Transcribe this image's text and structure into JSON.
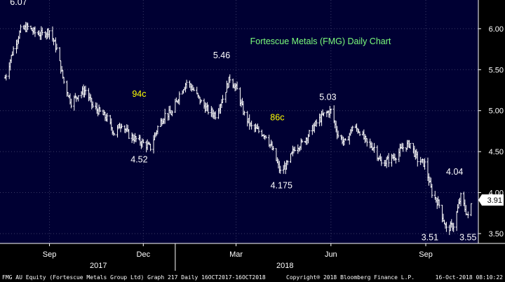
{
  "colors": {
    "plot_bg": "#000033",
    "price": "#FFFFFF",
    "grid": "#3A3A66",
    "title": "#7CFC7C",
    "highlight": "#FFFF00",
    "axis_text": "#FFFFFF",
    "footer_bg": "#000000"
  },
  "chart_data": {
    "type": "ohlc-bar",
    "title": "Fortescue Metals (FMG) Daily Chart",
    "ylim": [
      3.38,
      6.35
    ],
    "y_ticks": [
      {
        "value": 3.5,
        "label": "3.50"
      },
      {
        "value": 4.0,
        "label": "4.00"
      },
      {
        "value": 4.5,
        "label": "4.50"
      },
      {
        "value": 5.0,
        "label": "5.00"
      },
      {
        "value": 5.5,
        "label": "5.50"
      },
      {
        "value": 6.0,
        "label": "6.00"
      }
    ],
    "x_ticks": [
      {
        "date": "2017-09-01",
        "label": "Sep"
      },
      {
        "date": "2017-12-01",
        "label": "Dec"
      },
      {
        "date": "2018-03-01",
        "label": "Mar"
      },
      {
        "date": "2018-06-01",
        "label": "Jun"
      },
      {
        "date": "2018-09-01",
        "label": "Sep"
      }
    ],
    "year_labels": [
      {
        "label": "2017",
        "date": "2017-11-01"
      },
      {
        "label": "2018",
        "date": "2018-05-01"
      }
    ],
    "last_price": {
      "value": 3.91,
      "label": "3.91"
    },
    "series": [
      {
        "points": [
          [
            "2017-07-20",
            5.4
          ],
          [
            "2017-07-28",
            5.75
          ],
          [
            "2017-08-04",
            5.98
          ],
          [
            "2017-08-11",
            6.02
          ],
          [
            "2017-08-18",
            5.95
          ],
          [
            "2017-08-25",
            5.93
          ],
          [
            "2017-09-01",
            5.98
          ],
          [
            "2017-09-08",
            5.75
          ],
          [
            "2017-09-15",
            5.35
          ],
          [
            "2017-09-22",
            5.1
          ],
          [
            "2017-09-29",
            5.2
          ],
          [
            "2017-10-06",
            5.25
          ],
          [
            "2017-10-13",
            5.05
          ],
          [
            "2017-10-20",
            4.98
          ],
          [
            "2017-10-27",
            4.9
          ],
          [
            "2017-11-03",
            4.72
          ],
          [
            "2017-11-10",
            4.85
          ],
          [
            "2017-11-17",
            4.7
          ],
          [
            "2017-11-24",
            4.65
          ],
          [
            "2017-12-01",
            4.6
          ],
          [
            "2017-12-08",
            4.55
          ],
          [
            "2017-12-15",
            4.8
          ],
          [
            "2017-12-22",
            4.95
          ],
          [
            "2017-12-29",
            4.97
          ],
          [
            "2018-01-05",
            5.2
          ],
          [
            "2018-01-12",
            5.35
          ],
          [
            "2018-01-19",
            5.25
          ],
          [
            "2018-01-26",
            5.1
          ],
          [
            "2018-02-02",
            5.0
          ],
          [
            "2018-02-09",
            4.95
          ],
          [
            "2018-02-16",
            5.15
          ],
          [
            "2018-02-23",
            5.4
          ],
          [
            "2018-03-02",
            5.25
          ],
          [
            "2018-03-09",
            4.95
          ],
          [
            "2018-03-16",
            4.8
          ],
          [
            "2018-03-23",
            4.75
          ],
          [
            "2018-03-30",
            4.7
          ],
          [
            "2018-04-06",
            4.5
          ],
          [
            "2018-04-13",
            4.25
          ],
          [
            "2018-04-20",
            4.35
          ],
          [
            "2018-04-27",
            4.55
          ],
          [
            "2018-05-04",
            4.6
          ],
          [
            "2018-05-11",
            4.72
          ],
          [
            "2018-05-18",
            4.85
          ],
          [
            "2018-05-25",
            4.95
          ],
          [
            "2018-06-01",
            5.0
          ],
          [
            "2018-06-08",
            4.7
          ],
          [
            "2018-06-15",
            4.6
          ],
          [
            "2018-06-22",
            4.8
          ],
          [
            "2018-06-29",
            4.75
          ],
          [
            "2018-07-06",
            4.6
          ],
          [
            "2018-07-13",
            4.55
          ],
          [
            "2018-07-20",
            4.35
          ],
          [
            "2018-07-27",
            4.4
          ],
          [
            "2018-08-03",
            4.45
          ],
          [
            "2018-08-10",
            4.55
          ],
          [
            "2018-08-17",
            4.6
          ],
          [
            "2018-08-24",
            4.4
          ],
          [
            "2018-08-31",
            4.35
          ],
          [
            "2018-09-07",
            4.0
          ],
          [
            "2018-09-14",
            3.85
          ],
          [
            "2018-09-21",
            3.55
          ],
          [
            "2018-09-28",
            3.6
          ],
          [
            "2018-10-05",
            3.95
          ],
          [
            "2018-10-12",
            3.7
          ],
          [
            "2018-10-16",
            3.91
          ]
        ]
      }
    ],
    "annotations": [
      {
        "label": "6.07",
        "date": "2017-08-02",
        "value": 6.29,
        "color": "white"
      },
      {
        "label": "5.46",
        "date": "2018-02-15",
        "value": 5.64,
        "color": "white"
      },
      {
        "label": "5.03",
        "date": "2018-05-29",
        "value": 5.13,
        "color": "white"
      },
      {
        "label": "4.52",
        "date": "2017-11-27",
        "value": 4.37,
        "color": "white"
      },
      {
        "label": "4.175",
        "date": "2018-04-14",
        "value": 4.05,
        "color": "white"
      },
      {
        "label": "4.04",
        "date": "2018-09-29",
        "value": 4.22,
        "color": "white"
      },
      {
        "label": "3.51",
        "date": "2018-09-05",
        "value": 3.42,
        "color": "white"
      },
      {
        "label": "3.55",
        "date": "2018-10-12",
        "value": 3.42,
        "color": "white"
      },
      {
        "label": "94c",
        "date": "2017-11-27",
        "value": 5.17,
        "color": "yellow"
      },
      {
        "label": "86c",
        "date": "2018-04-10",
        "value": 4.88,
        "color": "yellow"
      }
    ]
  },
  "footer": {
    "left": "FMG AU Equity (Fortescue Metals Group Ltd) Graph 217  Daily 16OCT2017-16OCT2018",
    "center": "Copyright® 2018 Bloomberg Finance L.P.",
    "right": "16-Oct-2018 08:10:22"
  }
}
